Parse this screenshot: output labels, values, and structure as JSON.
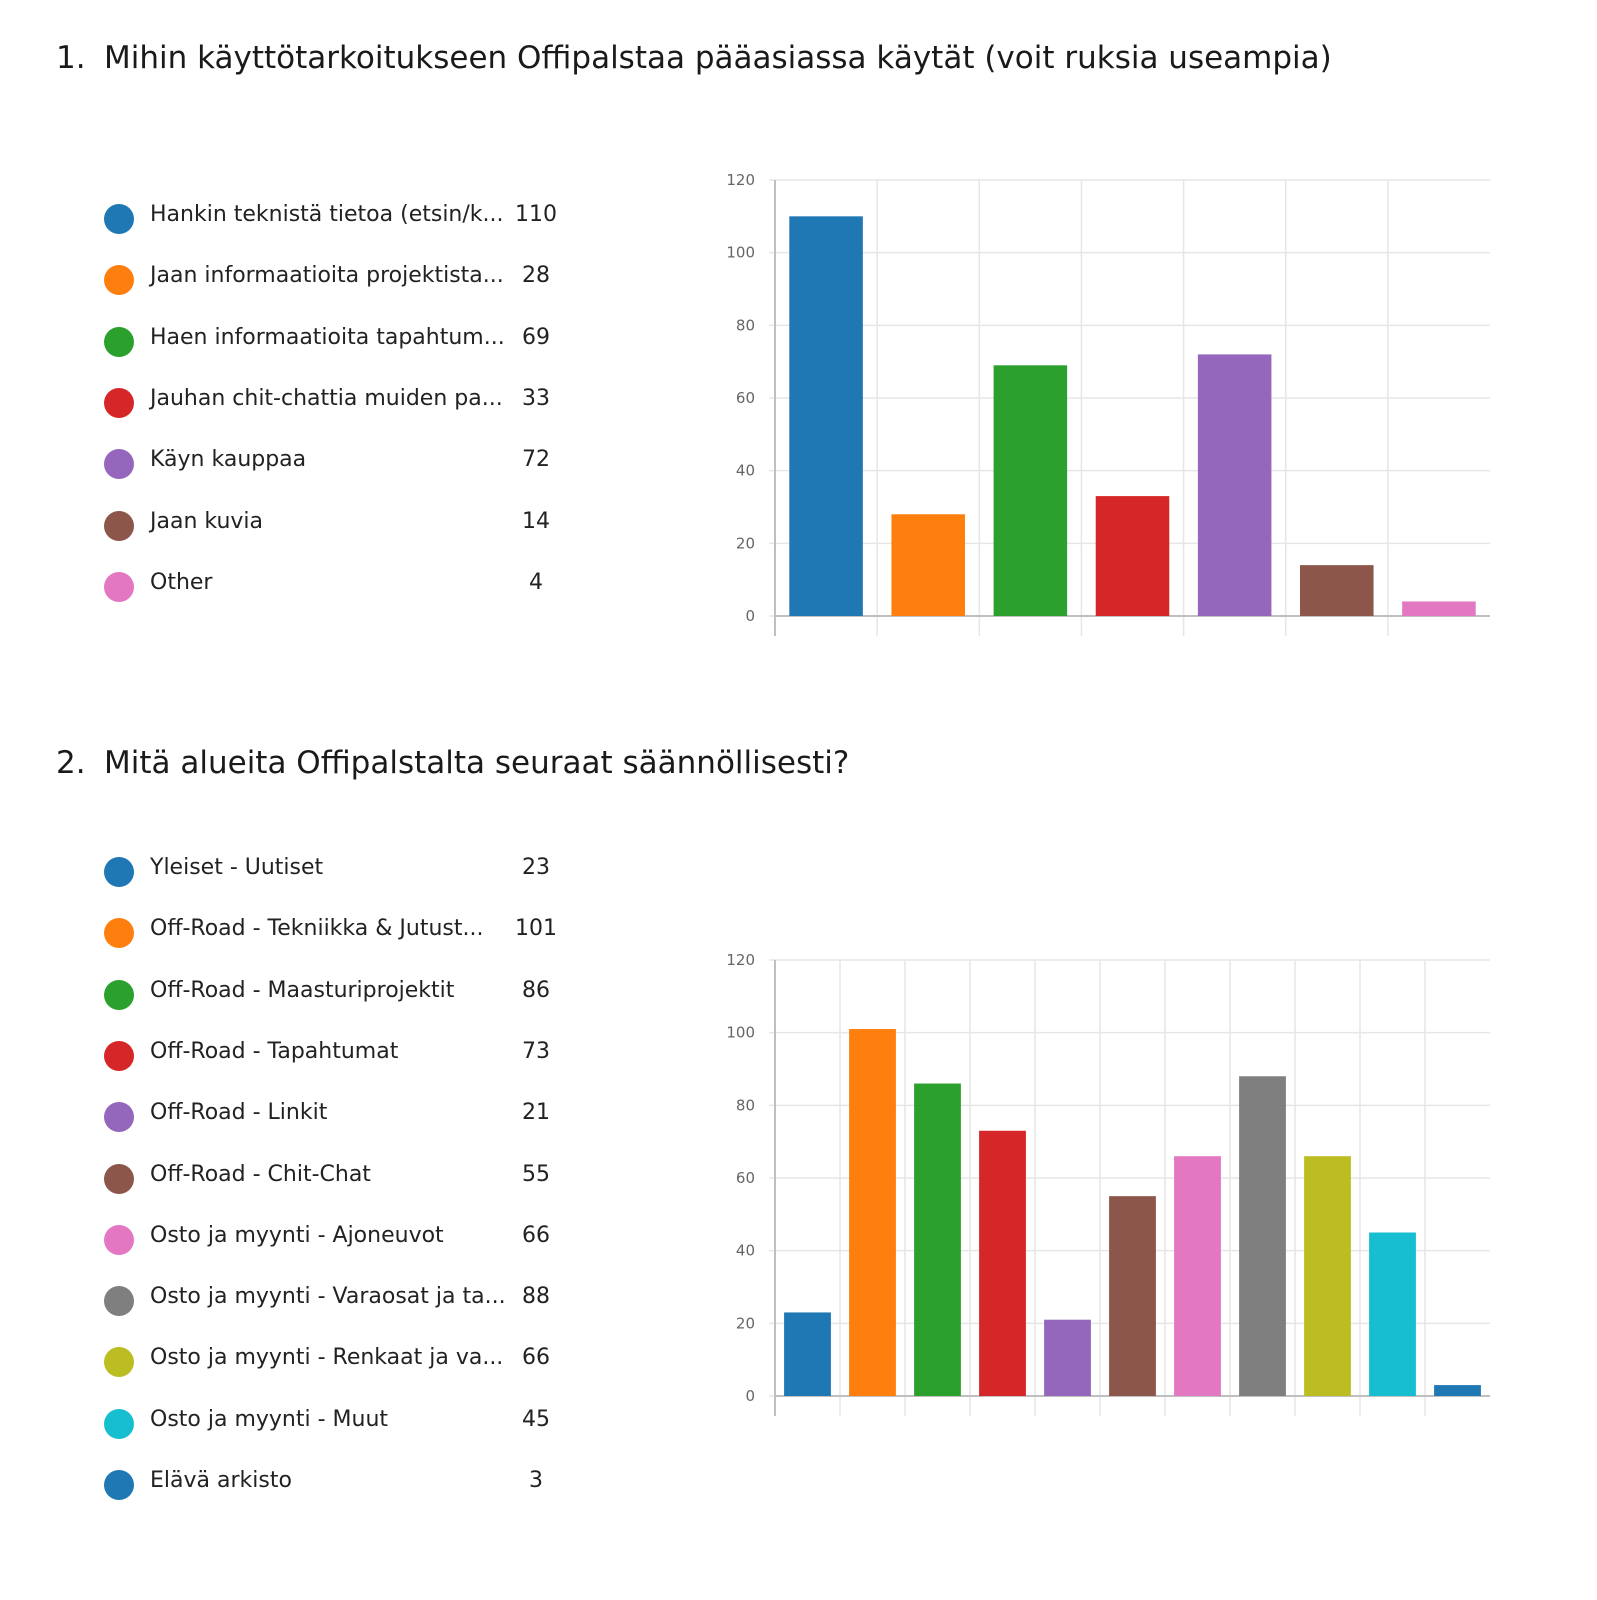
{
  "questions": [
    {
      "number": "1.",
      "title": "Mihin käyttötarkoitukseen Offipalstaa pääasiassa käytät (voit ruksia useampia)",
      "legend": [
        {
          "label": "Hankin teknistä tietoa (etsin/k...",
          "count": "110",
          "color": "#1f77b4"
        },
        {
          "label": "Jaan informaatioita projektista...",
          "count": "28",
          "color": "#ff7f0e"
        },
        {
          "label": "Haen informaatioita tapahtum...",
          "count": "69",
          "color": "#2ca02c"
        },
        {
          "label": "Jauhan chit-chattia muiden pa...",
          "count": "33",
          "color": "#d62728"
        },
        {
          "label": "Käyn kauppaa",
          "count": "72",
          "color": "#9467bd"
        },
        {
          "label": "Jaan kuvia",
          "count": "14",
          "color": "#8c564b"
        },
        {
          "label": "Other",
          "count": "4",
          "color": "#e377c2"
        }
      ]
    },
    {
      "number": "2.",
      "title": "Mitä alueita Offipalstalta seuraat säännöllisesti?",
      "legend": [
        {
          "label": "Yleiset - Uutiset",
          "count": "23",
          "color": "#1f77b4"
        },
        {
          "label": "Off-Road - Tekniikka & Jutust...",
          "count": "101",
          "color": "#ff7f0e"
        },
        {
          "label": "Off-Road - Maasturiprojektit",
          "count": "86",
          "color": "#2ca02c"
        },
        {
          "label": "Off-Road - Tapahtumat",
          "count": "73",
          "color": "#d62728"
        },
        {
          "label": "Off-Road - Linkit",
          "count": "21",
          "color": "#9467bd"
        },
        {
          "label": "Off-Road - Chit-Chat",
          "count": "55",
          "color": "#8c564b"
        },
        {
          "label": "Osto ja myynti - Ajoneuvot",
          "count": "66",
          "color": "#e377c2"
        },
        {
          "label": "Osto ja myynti - Varaosat ja ta...",
          "count": "88",
          "color": "#7f7f7f"
        },
        {
          "label": "Osto ja myynti - Renkaat ja va...",
          "count": "66",
          "color": "#bcbd22"
        },
        {
          "label": "Osto ja myynti - Muut",
          "count": "45",
          "color": "#17becf"
        },
        {
          "label": "Elävä arkisto",
          "count": "3",
          "color": "#1f77b4"
        }
      ]
    }
  ],
  "chart_data": [
    {
      "type": "bar",
      "title": "Mihin käyttötarkoitukseen Offipalstaa pääasiassa käytät (voit ruksia useampia)",
      "categories": [
        "Hankin teknistä tietoa (etsin/k...",
        "Jaan informaatioita projektista...",
        "Haen informaatioita tapahtum...",
        "Jauhan chit-chattia muiden pa...",
        "Käyn kauppaa",
        "Jaan kuvia",
        "Other"
      ],
      "values": [
        110,
        28,
        69,
        33,
        72,
        14,
        4
      ],
      "colors": [
        "#1f77b4",
        "#ff7f0e",
        "#2ca02c",
        "#d62728",
        "#9467bd",
        "#8c564b",
        "#e377c2"
      ],
      "yticks": [
        "0",
        "20",
        "40",
        "60",
        "80",
        "100",
        "120"
      ],
      "ylim": [
        0,
        120
      ],
      "xlabel": "",
      "ylabel": "",
      "grid": true
    },
    {
      "type": "bar",
      "title": "Mitä alueita Offipalstalta seuraat säännöllisesti?",
      "categories": [
        "Yleiset - Uutiset",
        "Off-Road - Tekniikka & Jutust...",
        "Off-Road - Maasturiprojektit",
        "Off-Road - Tapahtumat",
        "Off-Road - Linkit",
        "Off-Road - Chit-Chat",
        "Osto ja myynti - Ajoneuvot",
        "Osto ja myynti - Varaosat ja ta...",
        "Osto ja myynti - Renkaat ja va...",
        "Osto ja myynti - Muut",
        "Elävä arkisto"
      ],
      "values": [
        23,
        101,
        86,
        73,
        21,
        55,
        66,
        88,
        66,
        45,
        3
      ],
      "colors": [
        "#1f77b4",
        "#ff7f0e",
        "#2ca02c",
        "#d62728",
        "#9467bd",
        "#8c564b",
        "#e377c2",
        "#7f7f7f",
        "#bcbd22",
        "#17becf",
        "#1f77b4"
      ],
      "yticks": [
        "0",
        "20",
        "40",
        "60",
        "80",
        "100",
        "120"
      ],
      "ylim": [
        0,
        120
      ],
      "xlabel": "",
      "ylabel": "",
      "grid": true
    }
  ]
}
